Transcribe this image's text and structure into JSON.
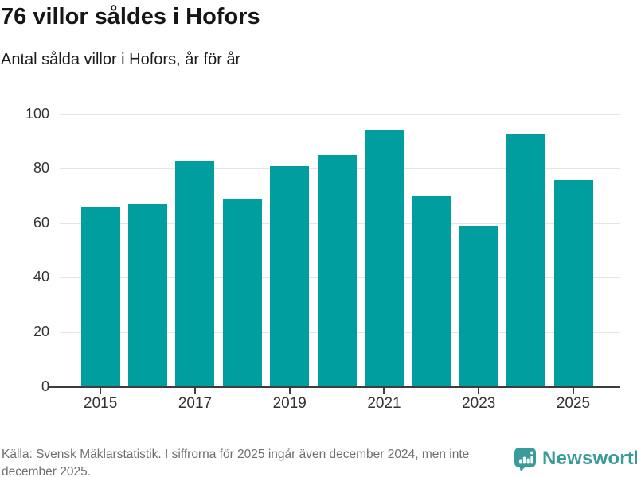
{
  "header": {
    "title": "76 villor såldes i Hofors",
    "subtitle": "Antal sålda villor i Hofors, år för år"
  },
  "chart_data": {
    "type": "bar",
    "categories": [
      "2015",
      "2016",
      "2017",
      "2018",
      "2019",
      "2020",
      "2021",
      "2022",
      "2023",
      "2024",
      "2025"
    ],
    "values": [
      66,
      67,
      83,
      69,
      81,
      85,
      94,
      70,
      59,
      93,
      76
    ],
    "title": "76 villor såldes i Hofors",
    "subtitle": "Antal sålda villor i Hofors, år för år",
    "xlabel": "",
    "ylabel": "",
    "ylim": [
      0,
      100
    ],
    "yticks": [
      0,
      20,
      40,
      60,
      80,
      100
    ],
    "xtick_labels": [
      "2015",
      "2017",
      "2019",
      "2021",
      "2023",
      "2025"
    ],
    "xtick_indices": [
      0,
      2,
      4,
      6,
      8,
      10
    ],
    "grid": "horizontal",
    "legend": "none",
    "bar_color": "#009e9e"
  },
  "footer": {
    "source": "Källa: Svensk Mäklarstatistik. I siffrorna för 2025 ingår även december 2024, men inte december 2025.",
    "brand": "Newsworthy",
    "brand_color": "#3a9b9b"
  }
}
